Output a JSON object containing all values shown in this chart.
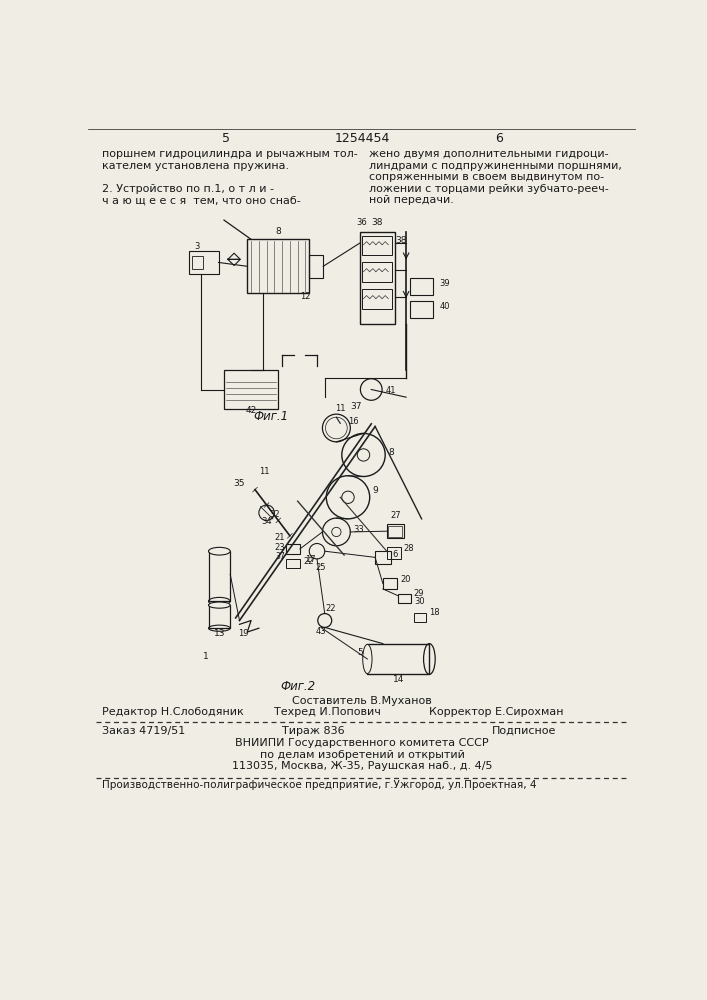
{
  "bg_color": "#f0ede5",
  "page_width": 7.07,
  "page_height": 10.0,
  "header_col1": "5",
  "header_center": "1254454",
  "header_col2": "6",
  "top_left_text": [
    "поршнем гидроцилиндра и рычажным тол-",
    "кателем установлена пружина.",
    "",
    "2. Устройство по п.1, о т л и -",
    "ч а ю щ е е с я  тем, что оно снаб-"
  ],
  "top_right_text": [
    "жено двумя дополнительными гидроци-",
    "линдрами с подпружиненными поршнями,",
    "сопряженными в своем выдвинутом по-",
    "ложении с торцами рейки зубчато-рееч-",
    "ной передачи."
  ],
  "fig1_label": "Фиг.1",
  "fig2_label": "Фиг.2",
  "footer_composer": "Составитель В.Муханов",
  "footer_editor": "Редактор Н.Слободяник",
  "footer_tech": "Техред И.Попович",
  "footer_corrector": "Корректор Е.Сирохман",
  "order_text": "Заказ 4719/51",
  "tirazh_text": "Тираж 836",
  "podpisnoe_text": "Подписное",
  "vniipicenter1": "ВНИИПИ Государственного комитета СССР",
  "vniipicenter2": "по делам изобретений и открытий",
  "vniipicenter3": "113035, Москва, Ж-35, Раушская наб., д. 4/5",
  "bottom_text": "Производственно-полиграфическое предприятие, г.Ужгород, ул.Проектная, 4"
}
